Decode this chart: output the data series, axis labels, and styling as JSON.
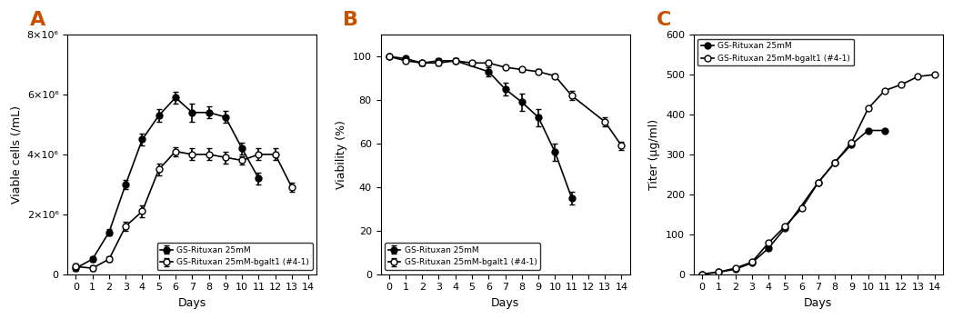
{
  "panel_labels": [
    "A",
    "B",
    "C"
  ],
  "legend_ctrl": "GS-Rituxan 25mM",
  "legend_bgalt": "GS-Rituxan 25mM-bgalt1 (#4-1)",
  "A": {
    "ylabel": "Viable cells (/mL)",
    "xlabel": "Days",
    "ylim": [
      0,
      8000000
    ],
    "yticks": [
      0,
      2000000,
      4000000,
      6000000,
      8000000
    ],
    "ytick_labels": [
      "0",
      "2×10⁶",
      "4×10⁶",
      "6×10⁶",
      "8×10⁶"
    ],
    "days_ctrl": [
      0,
      1,
      2,
      3,
      4,
      5,
      6,
      7,
      8,
      9,
      10,
      11
    ],
    "vals_ctrl": [
      200000,
      500000,
      1400000,
      3000000,
      4500000,
      5300000,
      5900000,
      5400000,
      5400000,
      5250000,
      4200000,
      3200000
    ],
    "err_ctrl": [
      100000,
      100000,
      100000,
      150000,
      200000,
      200000,
      200000,
      300000,
      200000,
      200000,
      200000,
      200000
    ],
    "days_bgalt": [
      0,
      1,
      2,
      3,
      4,
      5,
      6,
      7,
      8,
      9,
      10,
      11,
      12,
      13
    ],
    "vals_bgalt": [
      250000,
      200000,
      500000,
      1600000,
      2100000,
      3500000,
      4100000,
      4000000,
      4000000,
      3900000,
      3800000,
      4000000,
      4000000,
      2900000
    ],
    "err_bgalt": [
      100000,
      100000,
      100000,
      150000,
      200000,
      200000,
      150000,
      200000,
      200000,
      200000,
      150000,
      200000,
      200000,
      150000
    ]
  },
  "B": {
    "ylabel": "Viability (%)",
    "xlabel": "Days",
    "ylim": [
      0,
      110
    ],
    "yticks": [
      0,
      20,
      40,
      60,
      80,
      100
    ],
    "days_ctrl": [
      0,
      1,
      2,
      3,
      4,
      6,
      7,
      8,
      9,
      10,
      11
    ],
    "vals_ctrl": [
      100,
      99,
      97,
      98,
      98,
      93,
      85,
      79,
      72,
      56,
      35
    ],
    "err_ctrl": [
      1,
      1,
      1,
      1,
      1,
      2,
      3,
      4,
      4,
      4,
      3
    ],
    "days_bgalt": [
      0,
      1,
      2,
      3,
      4,
      5,
      6,
      7,
      8,
      9,
      10,
      11,
      13,
      14
    ],
    "vals_bgalt": [
      100,
      98,
      97,
      97,
      98,
      97,
      97,
      95,
      94,
      93,
      91,
      82,
      70,
      59
    ],
    "err_bgalt": [
      1,
      1,
      1,
      1,
      1,
      1,
      1,
      1,
      1,
      1,
      1,
      2,
      2,
      2
    ]
  },
  "C": {
    "ylabel": "Titer (μg/ml)",
    "xlabel": "Days",
    "ylim": [
      0,
      600
    ],
    "yticks": [
      0,
      100,
      200,
      300,
      400,
      500,
      600
    ],
    "days_ctrl": [
      0,
      1,
      2,
      3,
      4,
      5,
      7,
      8,
      9,
      10,
      11
    ],
    "vals_ctrl": [
      0,
      5,
      12,
      28,
      65,
      115,
      230,
      280,
      325,
      360,
      360
    ],
    "days_bgalt": [
      0,
      1,
      2,
      3,
      4,
      5,
      6,
      7,
      8,
      9,
      10,
      11,
      12,
      13,
      14
    ],
    "vals_bgalt": [
      0,
      5,
      15,
      30,
      78,
      120,
      165,
      230,
      280,
      330,
      415,
      460,
      475,
      495,
      500
    ]
  }
}
